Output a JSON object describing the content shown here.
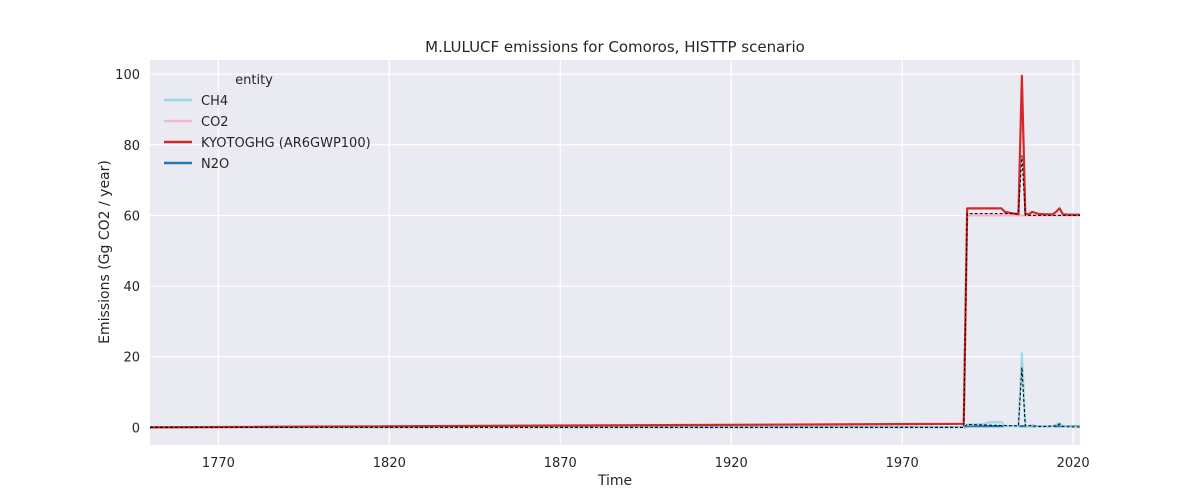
{
  "chart_data": {
    "type": "line",
    "title": "M.LULUCF emissions for Comoros, HISTTP scenario",
    "xlabel": "Time",
    "ylabel": "Emissions (Gg CO2 / year)",
    "xlim": [
      1750,
      2022
    ],
    "ylim": [
      -5,
      104
    ],
    "xticks": [
      1770,
      1820,
      1870,
      1920,
      1970,
      2020
    ],
    "yticks": [
      0,
      20,
      40,
      60,
      80,
      100
    ],
    "grid": true,
    "legend": {
      "title": "entity",
      "placement": "top-left"
    },
    "series": [
      {
        "name": "CH4",
        "color": "#9ad9e8",
        "x": [
          1750,
          1988,
          1989,
          1990,
          1994,
          1995,
          1999,
          2000,
          2004,
          2005,
          2006,
          2007,
          2008,
          2010,
          2012,
          2014,
          2015,
          2016,
          2017,
          2019,
          2022
        ],
        "y": [
          0,
          0,
          0.8,
          0.8,
          0.9,
          1.4,
          1.5,
          0.3,
          0.3,
          21,
          0.5,
          0.3,
          0.6,
          0.2,
          0.4,
          0.3,
          0.8,
          1.2,
          0.3,
          0.2,
          0.2
        ]
      },
      {
        "name": "CO2",
        "color": "#f3b8cc",
        "x": [
          1750,
          1890,
          1988,
          1989,
          2022
        ],
        "y": [
          0,
          0,
          1.0,
          60,
          60
        ]
      },
      {
        "name": "KYOTOGHG (AR6GWP100)",
        "color": "#d62728",
        "x": [
          1750,
          1988,
          1989,
          1999,
          2000,
          2004,
          2005,
          2006,
          2007,
          2008,
          2010,
          2012,
          2014,
          2015,
          2016,
          2017,
          2019,
          2022
        ],
        "y": [
          0,
          1.0,
          62,
          62,
          61,
          60.3,
          99.5,
          60.5,
          60.3,
          61,
          60.4,
          60.3,
          60.3,
          61,
          62,
          60.3,
          60.2,
          60.2
        ]
      },
      {
        "name": "N2O",
        "color": "#1f77b4",
        "x": [
          1750,
          1988,
          1989,
          2022
        ],
        "y": [
          0,
          0,
          0.3,
          0.3
        ]
      }
    ],
    "reference_lines": [
      {
        "color": "#000000",
        "x": [
          1750,
          1988,
          1989,
          2004,
          2005,
          2006,
          2022
        ],
        "y": [
          0,
          0,
          60.5,
          60.5,
          77,
          60,
          60
        ]
      },
      {
        "color": "#000000",
        "x": [
          1750,
          1988,
          1989,
          2004,
          2005,
          2006,
          2008,
          2010,
          2015,
          2016,
          2017,
          2022
        ],
        "y": [
          0,
          0,
          0.8,
          0.4,
          17,
          0.4,
          0.5,
          0.2,
          0.4,
          1.0,
          0.2,
          0.1
        ]
      }
    ]
  }
}
